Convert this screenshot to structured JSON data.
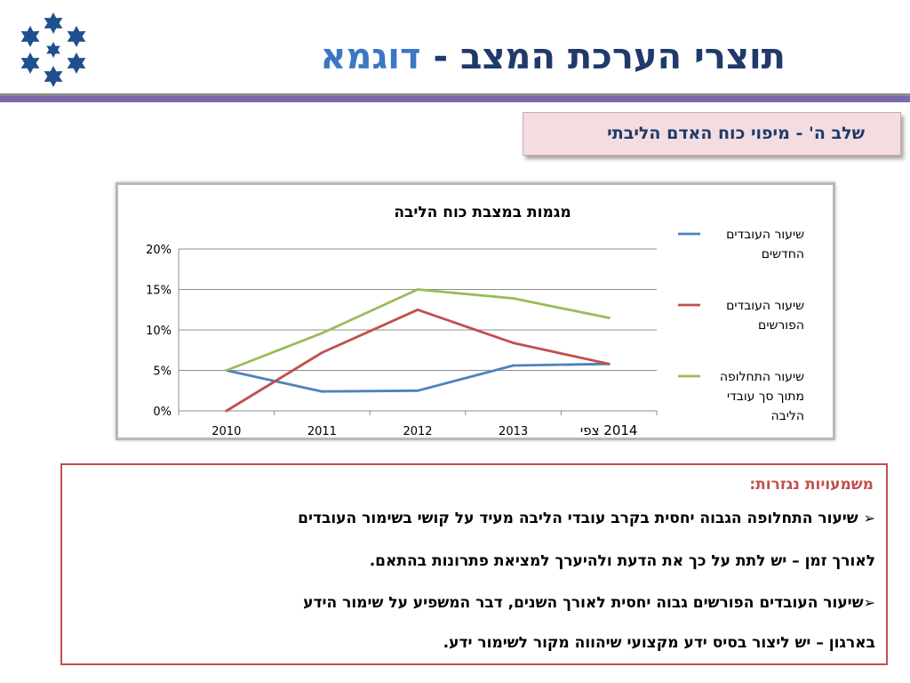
{
  "header": {
    "title_main": "תוצרי הערכת המצב - ",
    "title_accent": "דוגמא",
    "logo_icon": "stars-emblem-icon",
    "colors": {
      "title": "#1f3a6b",
      "accent": "#3a78c3",
      "rule_purple": "#7a68ac",
      "rule_grey": "#8c8c8c"
    }
  },
  "step": {
    "label": "שלב ה' - מיפוי כוח האדם הליבתי",
    "background": "#f3dde0"
  },
  "chart_data": {
    "type": "line",
    "title": "מגמות במצבת כוח הליבה",
    "categories": [
      "2010",
      "2011",
      "2012",
      "2013",
      "2014 צפי"
    ],
    "y_ticks": [
      "0%",
      "5%",
      "10%",
      "15%",
      "20%"
    ],
    "ylim": [
      0,
      0.2
    ],
    "grid": true,
    "legend_position": "right",
    "series": [
      {
        "name_lines": [
          "שיעור העובדים",
          "החדשים"
        ],
        "color": "#4f81bd",
        "values": [
          0.05,
          0.024,
          0.025,
          0.056,
          0.058
        ]
      },
      {
        "name_lines": [
          "שיעור העובדים",
          "הפורשים"
        ],
        "color": "#c0504d",
        "values": [
          0.0,
          0.072,
          0.125,
          0.084,
          0.058
        ]
      },
      {
        "name_lines": [
          "שיעור התחלופה",
          "מתוך סך עובדי",
          "הליבה"
        ],
        "color": "#9bbb59",
        "values": [
          0.05,
          0.096,
          0.15,
          0.139,
          0.115
        ]
      }
    ]
  },
  "implications": {
    "heading": "משמעויות נגזרות:",
    "bullet_icon": "arrow-check-bullet-icon",
    "bullet_glyph": "➢",
    "bullet1_line1": "שיעור התחלופה הגבוה יחסית בקרב עובדי הליבה מעיד על קושי בשימור העובדים",
    "bullet1_line2": "לאורך זמן – יש לתת על כך את הדעת ולהיערך למציאת פתרונות בהתאם.",
    "bullet2_line1": "שיעור העובדים הפורשים גבוה יחסית לאורך השנים, דבר המשפיע על שימור הידע",
    "bullet2_line2": "בארגון – יש ליצור בסיס ידע מקצועי שיהווה מקור לשימור ידע.",
    "border_color": "#c0504d"
  }
}
